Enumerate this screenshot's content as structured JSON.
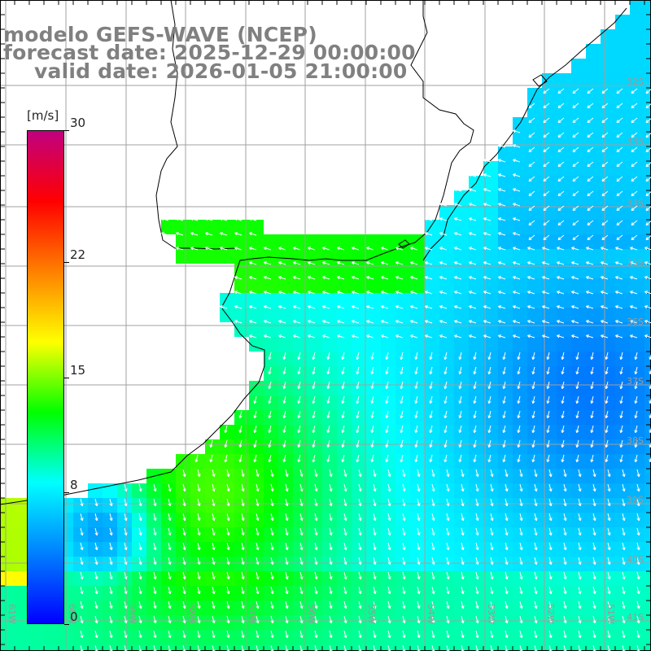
{
  "title": {
    "line1": "modelo GEFS-WAVE (NCEP)",
    "line2": "forecast date: 2025-12-29 00:00:00",
    "line3": "valid date: 2026-01-05 21:00:00"
  },
  "colorbar": {
    "unit": "[m/s]",
    "min": 0,
    "max": 30,
    "ticks": [
      {
        "value": 30,
        "label": "30"
      },
      {
        "value": 22,
        "label": "22"
      },
      {
        "value": 15,
        "label": "15"
      },
      {
        "value": 8,
        "label": "8"
      },
      {
        "value": 0,
        "label": "0"
      }
    ],
    "stops": [
      "#0000ff",
      "#0080ff",
      "#00ffff",
      "#00ff00",
      "#ffff00",
      "#ff8000",
      "#ff0000",
      "#c00080"
    ]
  },
  "axes": {
    "lat_labels": [
      "32S",
      "33S",
      "34S",
      "35S",
      "36S",
      "37S",
      "38S",
      "39S",
      "40S",
      "41S"
    ],
    "lon_labels": [
      "61W",
      "60W",
      "59W",
      "58W",
      "57W",
      "56W",
      "55W",
      "54W",
      "53W",
      "52W",
      "51W"
    ]
  }
}
